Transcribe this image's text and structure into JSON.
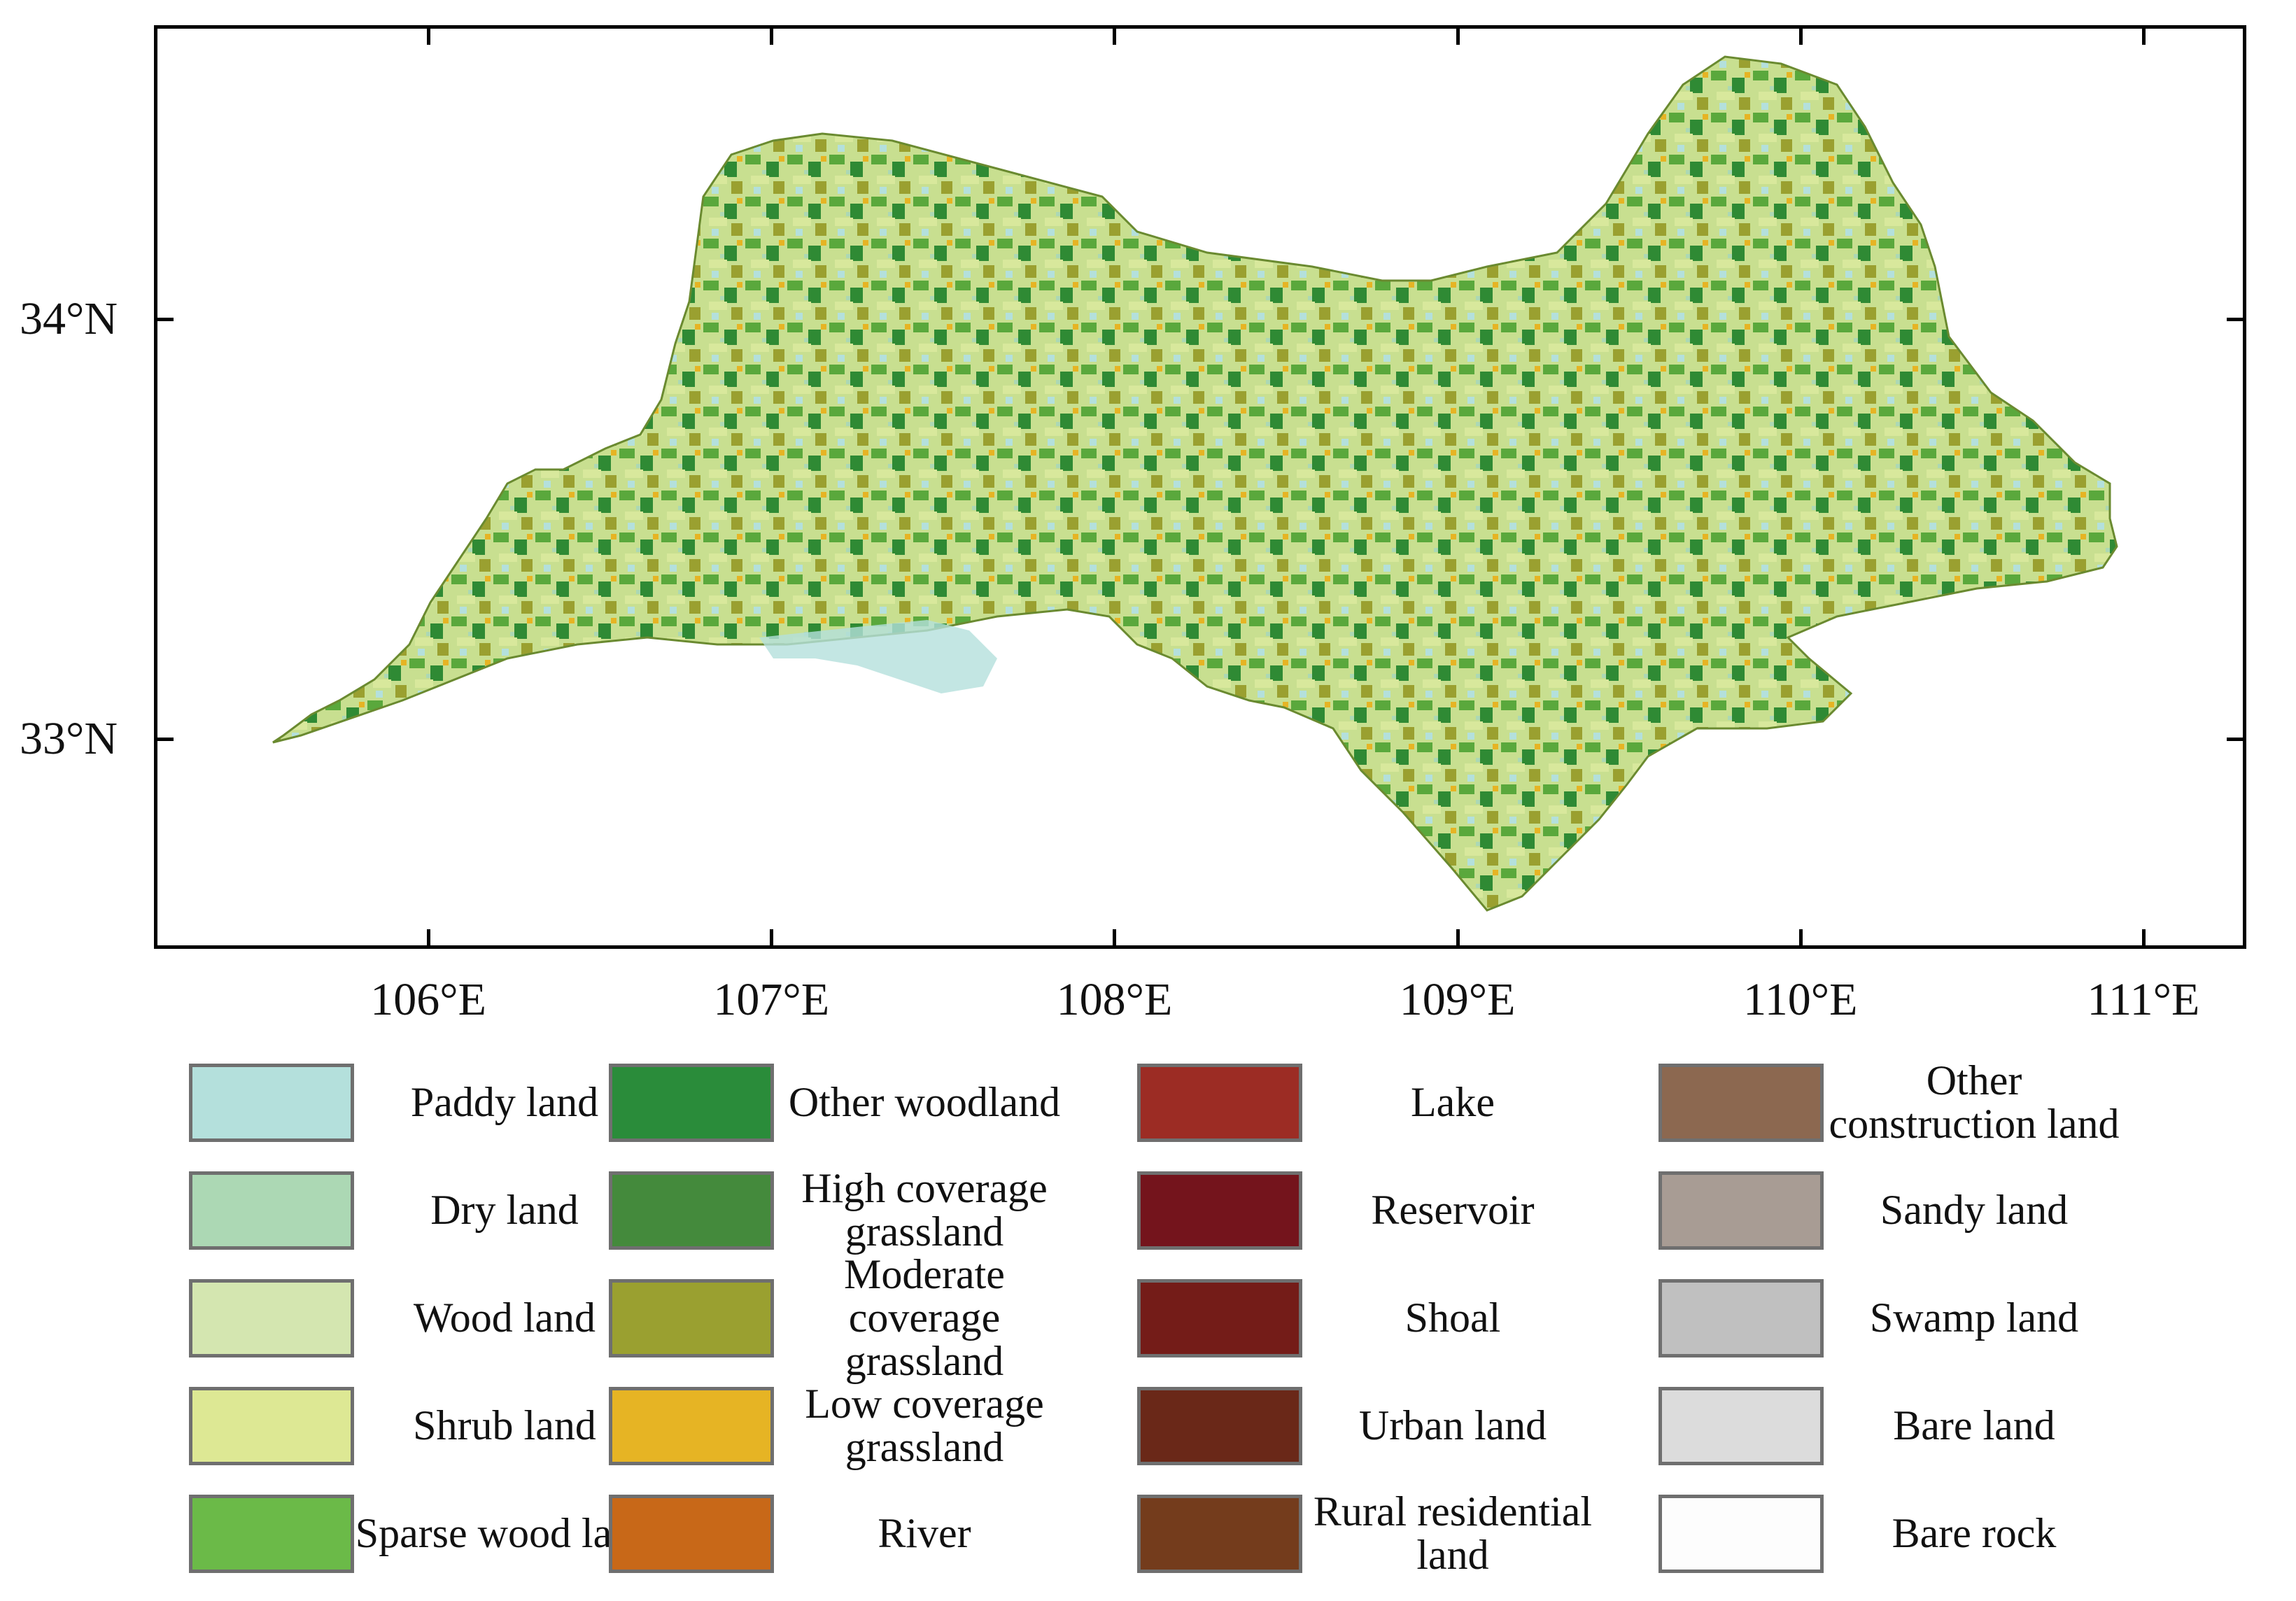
{
  "map": {
    "latitude_labels": [
      {
        "label": "34°N",
        "value": 34
      },
      {
        "label": "33°N",
        "value": 33
      }
    ],
    "longitude_labels": [
      {
        "label": "106°E",
        "value": 106
      },
      {
        "label": "107°E",
        "value": 107
      },
      {
        "label": "108°E",
        "value": 108
      },
      {
        "label": "109°E",
        "value": 109
      },
      {
        "label": "110°E",
        "value": 110
      },
      {
        "label": "111°E",
        "value": 111
      }
    ],
    "lon_range": [
      105.2,
      111.3
    ],
    "lat_range": [
      32.5,
      34.7
    ]
  },
  "legend": {
    "columns": [
      [
        {
          "label": "Paddy land",
          "color": "#b4e0dc"
        },
        {
          "label": "Dry land",
          "color": "#acd8b4"
        },
        {
          "label": "Wood land",
          "color": "#d4e6b0"
        },
        {
          "label": "Shrub land",
          "color": "#dde894"
        },
        {
          "label": "Sparse wood land",
          "color": "#6bba48"
        }
      ],
      [
        {
          "label": "Other woodland",
          "color": "#2a8c3a"
        },
        {
          "label": "High coverage grassland",
          "color": "#448a3c"
        },
        {
          "label": "Moderate coverage grassland",
          "color": "#9aa030"
        },
        {
          "label": "Low coverage grassland",
          "color": "#e6b424"
        },
        {
          "label": "River",
          "color": "#c86818"
        }
      ],
      [
        {
          "label": "Lake",
          "color": "#9c2c24"
        },
        {
          "label": "Reservoir",
          "color": "#74141c"
        },
        {
          "label": "Shoal",
          "color": "#741c18"
        },
        {
          "label": "Urban land",
          "color": "#6a2818"
        },
        {
          "label": "Rural residential land",
          "color": "#743c1c"
        }
      ],
      [
        {
          "label": "Other construction land",
          "color": "#8c6850"
        },
        {
          "label": "Sandy land",
          "color": "#a89c94"
        },
        {
          "label": "Swamp land",
          "color": "#c0c0c0"
        },
        {
          "label": "Bare land",
          "color": "#dcdcdc"
        },
        {
          "label": "Bare rock",
          "color": "#fdfdfd"
        }
      ]
    ]
  }
}
